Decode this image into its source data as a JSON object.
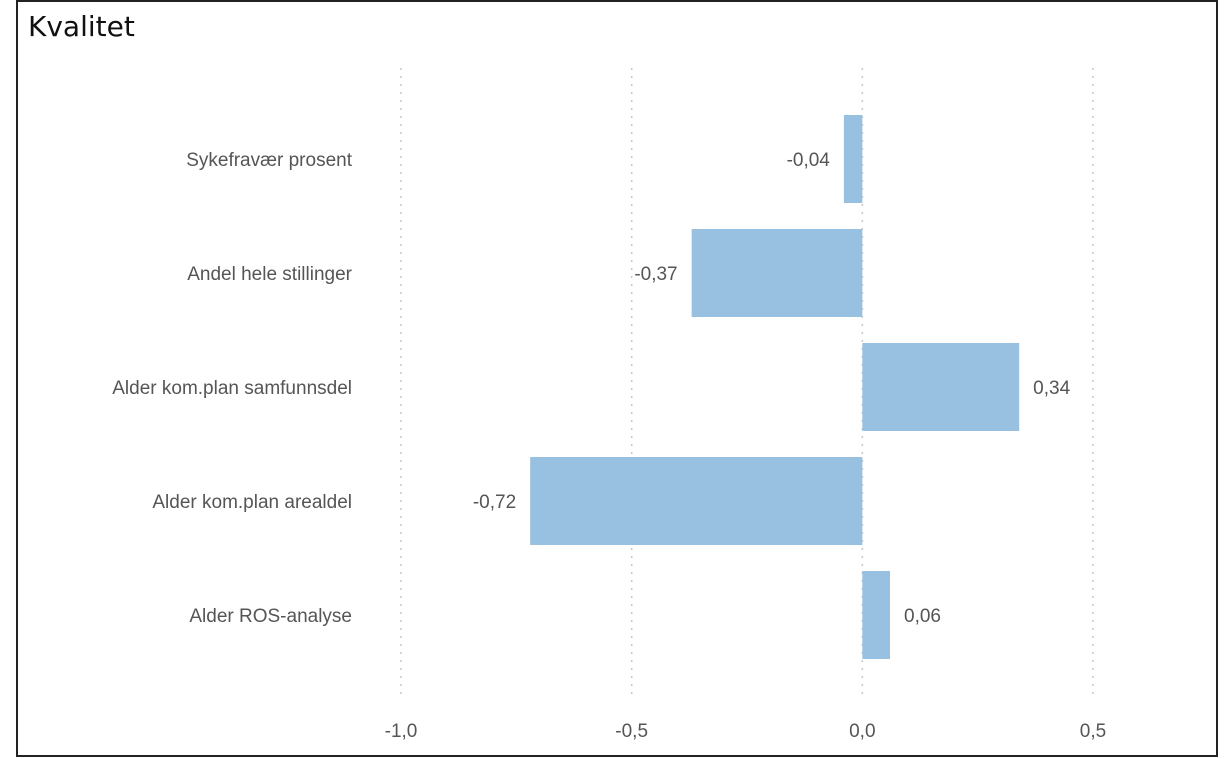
{
  "chart_data": {
    "type": "bar",
    "orientation": "horizontal",
    "title": "Kvalitet",
    "categories": [
      "Sykefravær prosent",
      "Andel hele stillinger",
      "Alder kom.plan samfunnsdel",
      "Alder kom.plan arealdel",
      "Alder ROS-analyse"
    ],
    "values": [
      -0.04,
      -0.37,
      0.34,
      -0.72,
      0.06
    ],
    "value_labels": [
      "-0,04",
      "-0,37",
      "0,34",
      "-0,72",
      "0,06"
    ],
    "x_ticks": [
      -1.0,
      -0.5,
      0.0,
      0.5
    ],
    "x_tick_labels": [
      "-1,0",
      "-0,5",
      "0,0",
      "0,5"
    ],
    "xlim": [
      -1.0,
      0.5
    ],
    "grid": true,
    "bar_color": "#97c0e1"
  }
}
